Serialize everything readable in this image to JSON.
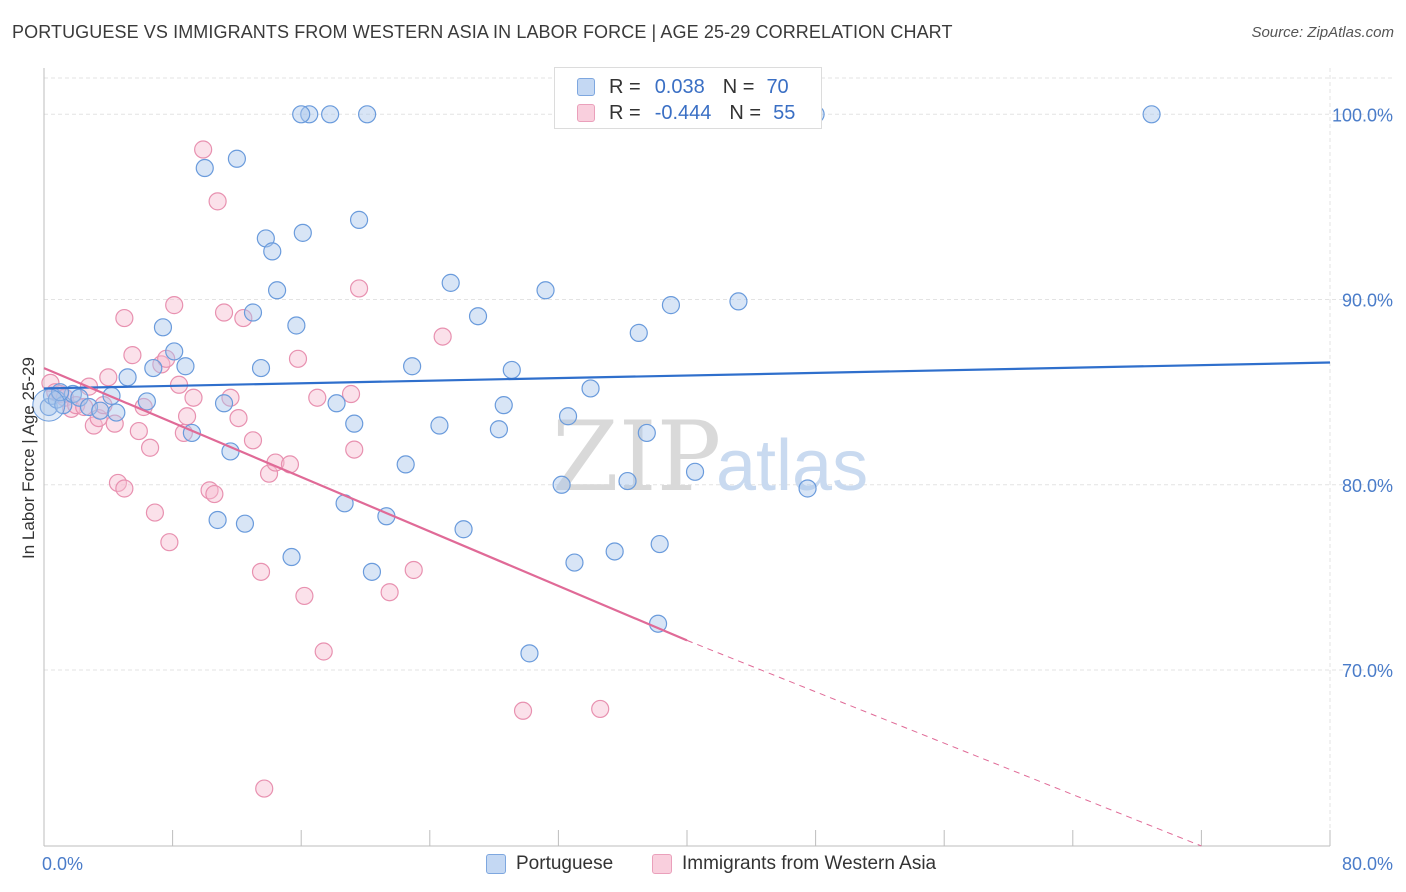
{
  "header": {
    "title": "PORTUGUESE VS IMMIGRANTS FROM WESTERN ASIA IN LABOR FORCE | AGE 25-29 CORRELATION CHART",
    "source": "Source: ZipAtlas.com"
  },
  "watermark": {
    "zip": "ZIP",
    "atlas": "atlas"
  },
  "legend_top": {
    "rows": [
      {
        "r_label": "R =",
        "r_value": "0.038",
        "n_label": "N =",
        "n_value": "70"
      },
      {
        "r_label": "R =",
        "r_value": "-0.444",
        "n_label": "N =",
        "n_value": "55"
      }
    ]
  },
  "legend_bottom": {
    "items": [
      {
        "label": "Portuguese"
      },
      {
        "label": "Immigrants from Western Asia"
      }
    ]
  },
  "colors": {
    "portuguese_fill": "#a9c6ec",
    "portuguese_stroke": "#6a9bdc",
    "portuguese_line": "#2f6fcc",
    "western_asia_fill": "#f6bcd0",
    "western_asia_stroke": "#e891b0",
    "western_asia_line": "#e06a97",
    "tick_label": "#4a7cc9",
    "grid": "#e3e3e3"
  },
  "chart_data": {
    "type": "scatter",
    "ylabel": "In Labor Force | Age 25-29",
    "xlim": [
      0,
      80
    ],
    "ylim": [
      60.5,
      102.5
    ],
    "x_tick_labels": [
      "0.0%",
      "80.0%"
    ],
    "y_ticks": [
      70,
      80,
      90,
      100
    ],
    "y_tick_labels": [
      "70.0%",
      "80.0%",
      "90.0%",
      "100.0%"
    ],
    "grid": true,
    "series": [
      {
        "name": "Portuguese",
        "marker_color": "#a9c6ec",
        "trend": {
          "x0": 0,
          "y0": 85.2,
          "x1": 80,
          "y1": 86.6
        },
        "points": [
          [
            0.3,
            84.2
          ],
          [
            0.5,
            84.8
          ],
          [
            0.8,
            84.6
          ],
          [
            1.2,
            84.3
          ],
          [
            1.8,
            84.9
          ],
          [
            2.2,
            84.7
          ],
          [
            2.8,
            84.2
          ],
          [
            3.5,
            84.0
          ],
          [
            4.2,
            84.8
          ],
          [
            5.2,
            85.8
          ],
          [
            6.4,
            84.5
          ],
          [
            6.8,
            86.3
          ],
          [
            7.4,
            88.5
          ],
          [
            8.1,
            87.2
          ],
          [
            8.8,
            86.4
          ],
          [
            9.2,
            82.8
          ],
          [
            10.0,
            97.1
          ],
          [
            10.8,
            78.1
          ],
          [
            11.2,
            84.4
          ],
          [
            11.6,
            81.8
          ],
          [
            12.5,
            77.9
          ],
          [
            13.0,
            89.3
          ],
          [
            13.5,
            86.3
          ],
          [
            13.8,
            93.3
          ],
          [
            14.2,
            92.6
          ],
          [
            14.5,
            90.5
          ],
          [
            15.4,
            76.1
          ],
          [
            15.7,
            88.6
          ],
          [
            16.1,
            93.6
          ],
          [
            16.5,
            100.0
          ],
          [
            17.8,
            100.0
          ],
          [
            18.2,
            84.4
          ],
          [
            18.7,
            79.0
          ],
          [
            19.3,
            83.3
          ],
          [
            19.6,
            94.3
          ],
          [
            20.1,
            100.0
          ],
          [
            20.4,
            75.3
          ],
          [
            21.3,
            78.3
          ],
          [
            22.5,
            81.1
          ],
          [
            22.9,
            86.4
          ],
          [
            24.6,
            83.2
          ],
          [
            25.3,
            90.9
          ],
          [
            26.1,
            77.6
          ],
          [
            27.0,
            89.1
          ],
          [
            28.3,
            83.0
          ],
          [
            28.6,
            84.3
          ],
          [
            29.1,
            86.2
          ],
          [
            31.2,
            90.5
          ],
          [
            32.2,
            80.0
          ],
          [
            32.6,
            83.7
          ],
          [
            33.0,
            75.8
          ],
          [
            34.0,
            85.2
          ],
          [
            35.5,
            76.4
          ],
          [
            36.3,
            80.2
          ],
          [
            37.0,
            88.2
          ],
          [
            37.5,
            82.8
          ],
          [
            38.3,
            76.8
          ],
          [
            39.0,
            89.7
          ],
          [
            40.5,
            80.7
          ],
          [
            43.2,
            89.9
          ],
          [
            47.5,
            79.8
          ],
          [
            48.0,
            100.0
          ],
          [
            68.9,
            100.0
          ],
          [
            1.0,
            85.0
          ],
          [
            4.5,
            83.9
          ],
          [
            12.0,
            97.6
          ],
          [
            16.0,
            100.0
          ],
          [
            30.2,
            70.9
          ],
          [
            38.2,
            72.5
          ],
          [
            33.8,
            100.0
          ]
        ]
      },
      {
        "name": "Immigrants from Western Asia",
        "marker_color": "#f6bcd0",
        "trend": {
          "x0": 0,
          "y0": 86.3,
          "x1": 40,
          "y1": 71.6
        },
        "trend_dashed_to": {
          "x": 72,
          "y": 60.5
        },
        "points": [
          [
            0.4,
            85.5
          ],
          [
            0.7,
            85.0
          ],
          [
            1.0,
            84.9
          ],
          [
            1.3,
            84.7
          ],
          [
            1.7,
            84.1
          ],
          [
            2.0,
            84.3
          ],
          [
            2.5,
            84.2
          ],
          [
            2.8,
            85.3
          ],
          [
            3.1,
            83.2
          ],
          [
            3.4,
            83.6
          ],
          [
            3.7,
            84.3
          ],
          [
            4.0,
            85.8
          ],
          [
            4.4,
            83.3
          ],
          [
            4.6,
            80.1
          ],
          [
            5.0,
            79.8
          ],
          [
            5.0,
            89.0
          ],
          [
            5.5,
            87.0
          ],
          [
            5.9,
            82.9
          ],
          [
            6.2,
            84.2
          ],
          [
            6.6,
            82.0
          ],
          [
            6.9,
            78.5
          ],
          [
            7.3,
            86.5
          ],
          [
            7.6,
            86.8
          ],
          [
            7.8,
            76.9
          ],
          [
            8.1,
            89.7
          ],
          [
            8.4,
            85.4
          ],
          [
            8.7,
            82.8
          ],
          [
            8.9,
            83.7
          ],
          [
            9.3,
            84.7
          ],
          [
            9.9,
            98.1
          ],
          [
            10.3,
            79.7
          ],
          [
            10.6,
            79.5
          ],
          [
            10.8,
            95.3
          ],
          [
            11.2,
            89.3
          ],
          [
            11.6,
            84.7
          ],
          [
            12.1,
            83.6
          ],
          [
            12.4,
            89.0
          ],
          [
            13.0,
            82.4
          ],
          [
            13.5,
            75.3
          ],
          [
            13.7,
            63.6
          ],
          [
            14.0,
            80.6
          ],
          [
            14.4,
            81.2
          ],
          [
            15.3,
            81.1
          ],
          [
            15.8,
            86.8
          ],
          [
            16.2,
            74.0
          ],
          [
            17.0,
            84.7
          ],
          [
            17.4,
            71.0
          ],
          [
            19.1,
            84.9
          ],
          [
            19.3,
            81.9
          ],
          [
            19.6,
            90.6
          ],
          [
            21.5,
            74.2
          ],
          [
            23.0,
            75.4
          ],
          [
            24.8,
            88.0
          ],
          [
            29.8,
            67.8
          ],
          [
            34.6,
            67.9
          ]
        ]
      }
    ]
  }
}
